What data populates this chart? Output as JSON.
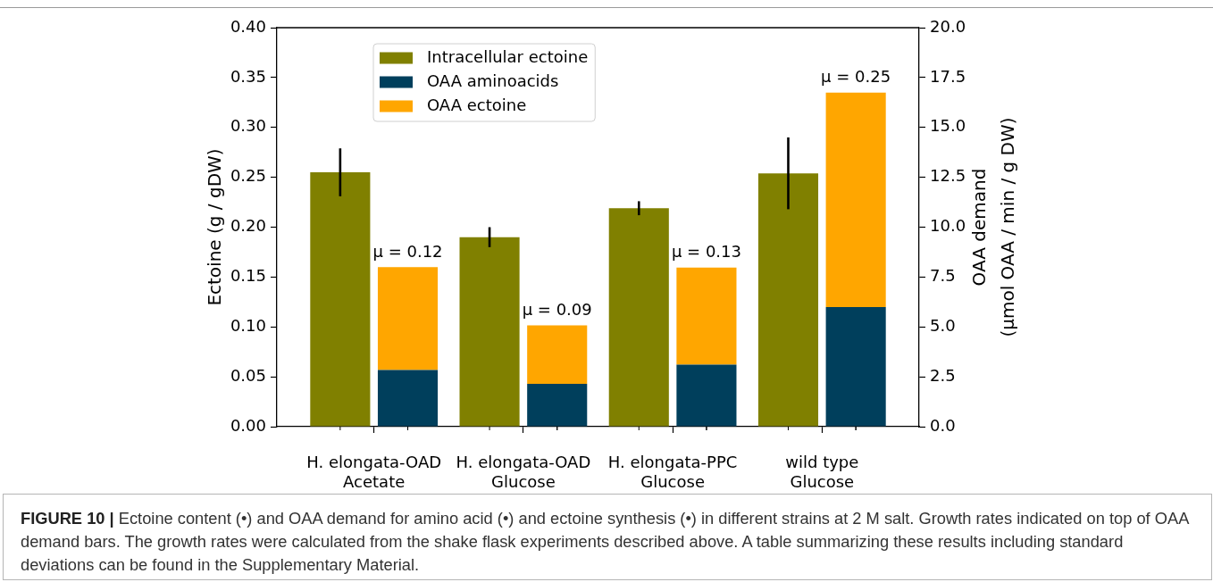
{
  "chart_data": {
    "type": "bar",
    "categories": [
      "H. elongata-OAD\nAcetate",
      "H. elongata-OAD\nGlucose",
      "H. elongata-PPC\nGlucose",
      "wild type\nGlucose"
    ],
    "ylabel": "Ectoine (g / gDW)",
    "y2label": "OAA demand\n(μmol OAA / min / g DW)",
    "series": [
      {
        "name": "Intracellular ectoine",
        "color": "#808000",
        "values": [
          0.255,
          0.19,
          0.219,
          0.254
        ],
        "errors": [
          0.024,
          0.01,
          0.007,
          0.036
        ]
      },
      {
        "name": "OAA aminoacids",
        "color": "#003f5c",
        "axis": "y2",
        "values": [
          2.84,
          2.15,
          3.11,
          6.0
        ]
      },
      {
        "name": "OAA ectoine",
        "color": "#ffa600",
        "axis": "y2",
        "values": [
          5.16,
          2.93,
          4.87,
          10.75
        ]
      }
    ],
    "stacked": true,
    "ylim": [
      0,
      0.4
    ],
    "yticks": [
      {
        "value": 0,
        "label": "0.00"
      },
      0.05,
      {
        "value": 0.1,
        "label": "0.10"
      },
      0.15,
      {
        "value": 0.2,
        "label": "0.20"
      },
      0.25,
      {
        "value": 0.3,
        "label": "0.30"
      },
      0.35,
      {
        "value": 0.4,
        "label": "0.40"
      }
    ],
    "y2lim": [
      0,
      20
    ],
    "y2ticks": [
      {
        "value": 0,
        "label": "0.0"
      },
      2.5,
      {
        "value": 5,
        "label": "5.0"
      },
      7.5,
      {
        "value": 10,
        "label": "10.0"
      },
      12.5,
      {
        "value": 15,
        "label": "15.0"
      },
      17.5,
      {
        "value": 20,
        "label": "20.0"
      }
    ],
    "grid": false,
    "legend": "top left",
    "annotations": [
      {
        "text": "μ = 0.12",
        "x": "H. elongata-OAD\nAcetate",
        "y": 0.16
      },
      {
        "text": "μ = 0.09",
        "x": "H. elongata-OAD\nGlucose",
        "y": 0.102
      },
      {
        "text": "μ = 0.13",
        "x": "H. elongata-PPC\nGlucose",
        "y": 0.16
      },
      {
        "text": "μ = 0.25",
        "x": "wild type\nGlucose",
        "y": 0.335
      },
      "FIGURE 10 | Ectoine content (•) and OAA demand for amino acid (•) and ectoine synthesis (•) in different strains at 2 M salt. Growth rates indicated on top of OAA demand bars. The growth rates were calculated from the shake flask experiments described above. A table summarizing these results including standard deviations can be found in the Supplementary Material."
    ]
  }
}
